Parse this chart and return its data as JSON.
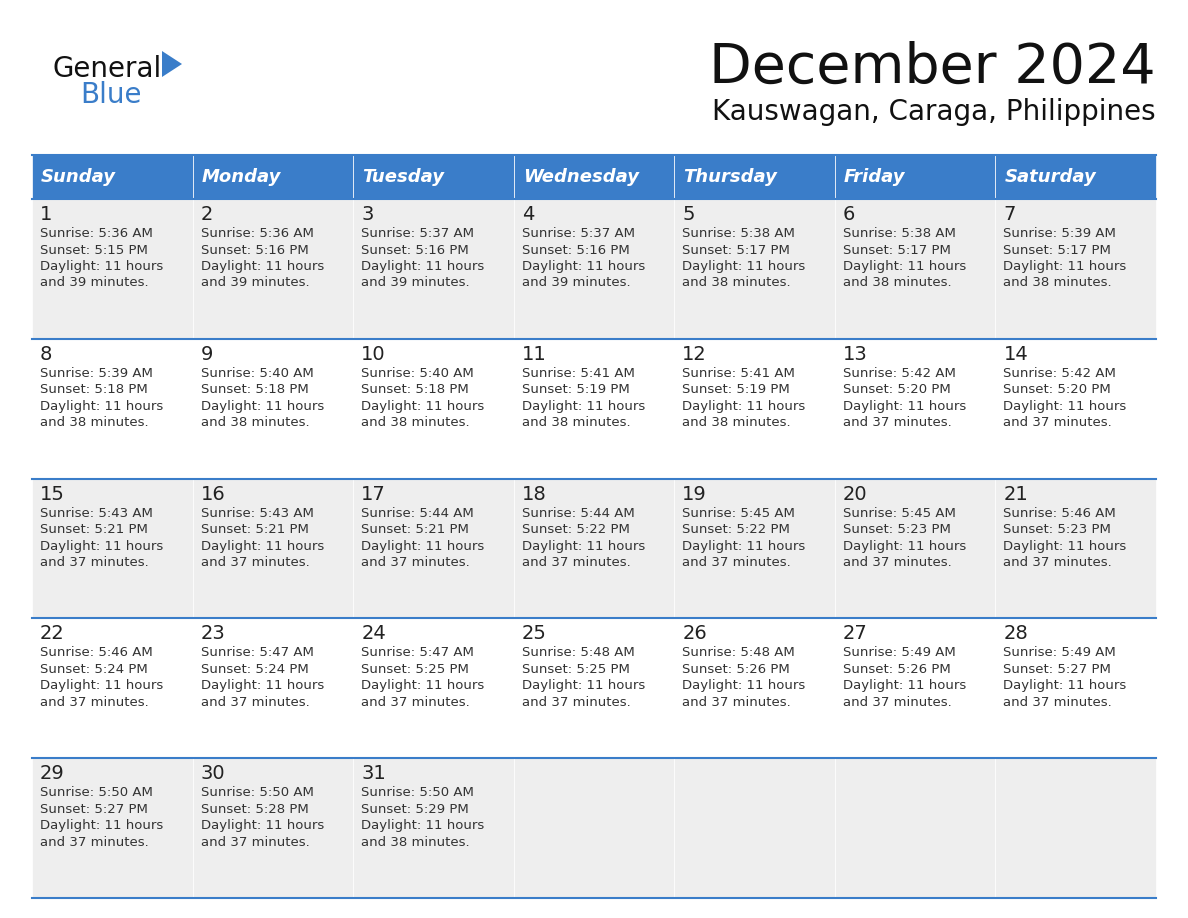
{
  "title": "December 2024",
  "subtitle": "Kauswagan, Caraga, Philippines",
  "days_of_week": [
    "Sunday",
    "Monday",
    "Tuesday",
    "Wednesday",
    "Thursday",
    "Friday",
    "Saturday"
  ],
  "header_bg_color": "#3A7DC9",
  "header_text_color": "#FFFFFF",
  "row_bg_even": "#EEEEEE",
  "row_bg_odd": "#FFFFFF",
  "day_num_color": "#222222",
  "text_color": "#333333",
  "line_color": "#3A7DC9",
  "calendar_data": [
    [
      {
        "day": 1,
        "sunrise": "5:36 AM",
        "sunset": "5:15 PM",
        "daylight_l1": "11 hours",
        "daylight_l2": "and 39 minutes."
      },
      {
        "day": 2,
        "sunrise": "5:36 AM",
        "sunset": "5:16 PM",
        "daylight_l1": "11 hours",
        "daylight_l2": "and 39 minutes."
      },
      {
        "day": 3,
        "sunrise": "5:37 AM",
        "sunset": "5:16 PM",
        "daylight_l1": "11 hours",
        "daylight_l2": "and 39 minutes."
      },
      {
        "day": 4,
        "sunrise": "5:37 AM",
        "sunset": "5:16 PM",
        "daylight_l1": "11 hours",
        "daylight_l2": "and 39 minutes."
      },
      {
        "day": 5,
        "sunrise": "5:38 AM",
        "sunset": "5:17 PM",
        "daylight_l1": "11 hours",
        "daylight_l2": "and 38 minutes."
      },
      {
        "day": 6,
        "sunrise": "5:38 AM",
        "sunset": "5:17 PM",
        "daylight_l1": "11 hours",
        "daylight_l2": "and 38 minutes."
      },
      {
        "day": 7,
        "sunrise": "5:39 AM",
        "sunset": "5:17 PM",
        "daylight_l1": "11 hours",
        "daylight_l2": "and 38 minutes."
      }
    ],
    [
      {
        "day": 8,
        "sunrise": "5:39 AM",
        "sunset": "5:18 PM",
        "daylight_l1": "11 hours",
        "daylight_l2": "and 38 minutes."
      },
      {
        "day": 9,
        "sunrise": "5:40 AM",
        "sunset": "5:18 PM",
        "daylight_l1": "11 hours",
        "daylight_l2": "and 38 minutes."
      },
      {
        "day": 10,
        "sunrise": "5:40 AM",
        "sunset": "5:18 PM",
        "daylight_l1": "11 hours",
        "daylight_l2": "and 38 minutes."
      },
      {
        "day": 11,
        "sunrise": "5:41 AM",
        "sunset": "5:19 PM",
        "daylight_l1": "11 hours",
        "daylight_l2": "and 38 minutes."
      },
      {
        "day": 12,
        "sunrise": "5:41 AM",
        "sunset": "5:19 PM",
        "daylight_l1": "11 hours",
        "daylight_l2": "and 38 minutes."
      },
      {
        "day": 13,
        "sunrise": "5:42 AM",
        "sunset": "5:20 PM",
        "daylight_l1": "11 hours",
        "daylight_l2": "and 37 minutes."
      },
      {
        "day": 14,
        "sunrise": "5:42 AM",
        "sunset": "5:20 PM",
        "daylight_l1": "11 hours",
        "daylight_l2": "and 37 minutes."
      }
    ],
    [
      {
        "day": 15,
        "sunrise": "5:43 AM",
        "sunset": "5:21 PM",
        "daylight_l1": "11 hours",
        "daylight_l2": "and 37 minutes."
      },
      {
        "day": 16,
        "sunrise": "5:43 AM",
        "sunset": "5:21 PM",
        "daylight_l1": "11 hours",
        "daylight_l2": "and 37 minutes."
      },
      {
        "day": 17,
        "sunrise": "5:44 AM",
        "sunset": "5:21 PM",
        "daylight_l1": "11 hours",
        "daylight_l2": "and 37 minutes."
      },
      {
        "day": 18,
        "sunrise": "5:44 AM",
        "sunset": "5:22 PM",
        "daylight_l1": "11 hours",
        "daylight_l2": "and 37 minutes."
      },
      {
        "day": 19,
        "sunrise": "5:45 AM",
        "sunset": "5:22 PM",
        "daylight_l1": "11 hours",
        "daylight_l2": "and 37 minutes."
      },
      {
        "day": 20,
        "sunrise": "5:45 AM",
        "sunset": "5:23 PM",
        "daylight_l1": "11 hours",
        "daylight_l2": "and 37 minutes."
      },
      {
        "day": 21,
        "sunrise": "5:46 AM",
        "sunset": "5:23 PM",
        "daylight_l1": "11 hours",
        "daylight_l2": "and 37 minutes."
      }
    ],
    [
      {
        "day": 22,
        "sunrise": "5:46 AM",
        "sunset": "5:24 PM",
        "daylight_l1": "11 hours",
        "daylight_l2": "and 37 minutes."
      },
      {
        "day": 23,
        "sunrise": "5:47 AM",
        "sunset": "5:24 PM",
        "daylight_l1": "11 hours",
        "daylight_l2": "and 37 minutes."
      },
      {
        "day": 24,
        "sunrise": "5:47 AM",
        "sunset": "5:25 PM",
        "daylight_l1": "11 hours",
        "daylight_l2": "and 37 minutes."
      },
      {
        "day": 25,
        "sunrise": "5:48 AM",
        "sunset": "5:25 PM",
        "daylight_l1": "11 hours",
        "daylight_l2": "and 37 minutes."
      },
      {
        "day": 26,
        "sunrise": "5:48 AM",
        "sunset": "5:26 PM",
        "daylight_l1": "11 hours",
        "daylight_l2": "and 37 minutes."
      },
      {
        "day": 27,
        "sunrise": "5:49 AM",
        "sunset": "5:26 PM",
        "daylight_l1": "11 hours",
        "daylight_l2": "and 37 minutes."
      },
      {
        "day": 28,
        "sunrise": "5:49 AM",
        "sunset": "5:27 PM",
        "daylight_l1": "11 hours",
        "daylight_l2": "and 37 minutes."
      }
    ],
    [
      {
        "day": 29,
        "sunrise": "5:50 AM",
        "sunset": "5:27 PM",
        "daylight_l1": "11 hours",
        "daylight_l2": "and 37 minutes."
      },
      {
        "day": 30,
        "sunrise": "5:50 AM",
        "sunset": "5:28 PM",
        "daylight_l1": "11 hours",
        "daylight_l2": "and 37 minutes."
      },
      {
        "day": 31,
        "sunrise": "5:50 AM",
        "sunset": "5:29 PM",
        "daylight_l1": "11 hours",
        "daylight_l2": "and 38 minutes."
      },
      null,
      null,
      null,
      null
    ]
  ]
}
